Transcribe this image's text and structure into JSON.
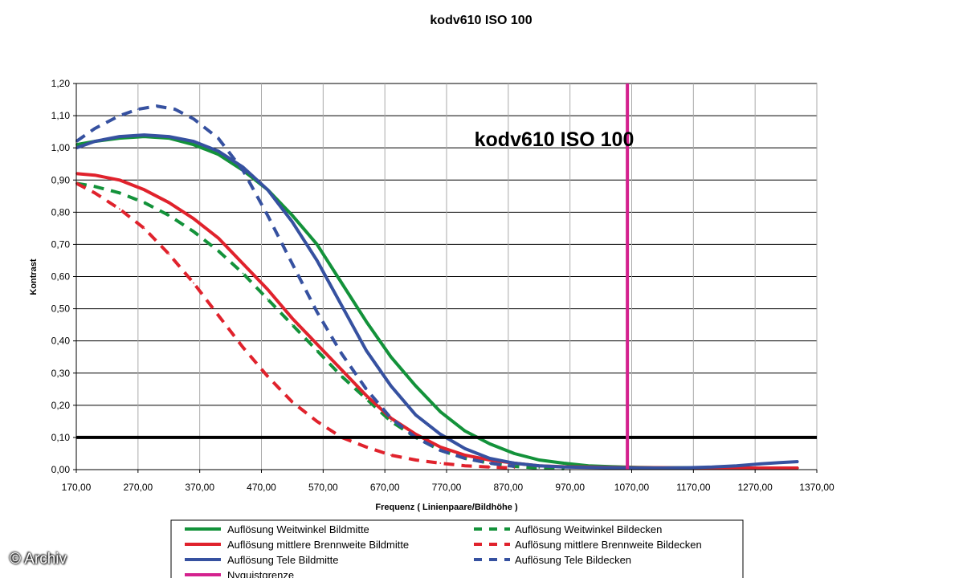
{
  "chart_data": {
    "type": "line",
    "title": "kodv610   ISO 100",
    "inner_title": "kodv610   ISO 100",
    "xlabel": "Frequenz ( Linienpaare/Bildhöhe )",
    "ylabel": "Kontrast",
    "xlim": [
      170,
      1370
    ],
    "ylim": [
      0,
      1.2
    ],
    "x_ticks": [
      170,
      270,
      370,
      470,
      570,
      670,
      770,
      870,
      970,
      1070,
      1170,
      1270,
      1370
    ],
    "x_tick_labels": [
      "170,00",
      "270,00",
      "370,00",
      "470,00",
      "570,00",
      "670,00",
      "770,00",
      "870,00",
      "970,00",
      "1070,00",
      "1170,00",
      "1270,00",
      "1370,00"
    ],
    "y_ticks": [
      0,
      0.1,
      0.2,
      0.3,
      0.4,
      0.5,
      0.6,
      0.7,
      0.8,
      0.9,
      1.0,
      1.1,
      1.2
    ],
    "y_tick_labels": [
      "0,00",
      "0,10",
      "0,20",
      "0,30",
      "0,40",
      "0,50",
      "0,60",
      "0,70",
      "0,80",
      "0,90",
      "1,00",
      "1,10",
      "1,20"
    ],
    "threshold": {
      "y": 0.1,
      "color": "#000000"
    },
    "nyquist": {
      "name": "Nyquistgrenze",
      "x": 1063,
      "color": "#d4218e"
    },
    "legend_position": "bottom",
    "series": [
      {
        "name": "Auflösung Weitwinkel Bildmitte",
        "color": "#13923a",
        "dash": false,
        "x": [
          170,
          200,
          240,
          280,
          320,
          360,
          400,
          440,
          480,
          520,
          560,
          600,
          640,
          680,
          720,
          760,
          800,
          840,
          880,
          920,
          960,
          1000,
          1040,
          1080,
          1120,
          1160,
          1200,
          1240,
          1280,
          1340
        ],
        "y": [
          1.01,
          1.02,
          1.03,
          1.035,
          1.03,
          1.01,
          0.98,
          0.93,
          0.87,
          0.79,
          0.7,
          0.58,
          0.46,
          0.35,
          0.26,
          0.18,
          0.12,
          0.08,
          0.05,
          0.03,
          0.02,
          0.012,
          0.009,
          0.007,
          0.006,
          0.006,
          0.005,
          0.005,
          0.005,
          0.005
        ]
      },
      {
        "name": "Auflösung Weitwinkel Bildecken",
        "color": "#13923a",
        "dash": true,
        "x": [
          170,
          200,
          240,
          280,
          320,
          360,
          400,
          440,
          480,
          520,
          560,
          600,
          640,
          680,
          720,
          760,
          800,
          840,
          880,
          920,
          960
        ],
        "y": [
          0.89,
          0.88,
          0.86,
          0.83,
          0.79,
          0.74,
          0.68,
          0.61,
          0.53,
          0.45,
          0.37,
          0.29,
          0.22,
          0.15,
          0.1,
          0.06,
          0.035,
          0.02,
          0.01,
          0.005,
          0.003
        ]
      },
      {
        "name": "Auflösung mittlere Brennweite Bildmitte",
        "color": "#e0222c",
        "dash": false,
        "x": [
          170,
          200,
          240,
          280,
          320,
          360,
          400,
          440,
          480,
          520,
          560,
          600,
          640,
          680,
          720,
          760,
          800,
          840,
          880,
          920,
          960,
          1000,
          1040,
          1080,
          1120,
          1160,
          1200,
          1240,
          1280,
          1340
        ],
        "y": [
          0.92,
          0.915,
          0.9,
          0.87,
          0.83,
          0.78,
          0.72,
          0.64,
          0.56,
          0.47,
          0.39,
          0.31,
          0.23,
          0.16,
          0.11,
          0.07,
          0.045,
          0.03,
          0.02,
          0.012,
          0.009,
          0.008,
          0.007,
          0.006,
          0.006,
          0.005,
          0.005,
          0.005,
          0.005,
          0.005
        ]
      },
      {
        "name": "Auflösung mittlere Brennweite Bildecken",
        "color": "#e0222c",
        "dash": true,
        "x": [
          170,
          200,
          240,
          280,
          320,
          360,
          400,
          440,
          480,
          520,
          560,
          600,
          640,
          680,
          720,
          760,
          800,
          840,
          880
        ],
        "y": [
          0.89,
          0.86,
          0.81,
          0.75,
          0.67,
          0.58,
          0.48,
          0.38,
          0.29,
          0.21,
          0.15,
          0.1,
          0.07,
          0.045,
          0.03,
          0.02,
          0.012,
          0.008,
          0.005
        ]
      },
      {
        "name": "Auflösung Tele Bildmitte",
        "color": "#3651a0",
        "dash": false,
        "x": [
          170,
          200,
          240,
          280,
          320,
          360,
          400,
          440,
          480,
          520,
          560,
          600,
          640,
          680,
          720,
          760,
          800,
          840,
          880,
          920,
          960,
          1000,
          1040,
          1080,
          1120,
          1160,
          1200,
          1240,
          1280,
          1310,
          1340
        ],
        "y": [
          1.0,
          1.02,
          1.035,
          1.04,
          1.035,
          1.02,
          0.99,
          0.94,
          0.87,
          0.77,
          0.65,
          0.51,
          0.37,
          0.26,
          0.17,
          0.11,
          0.065,
          0.035,
          0.02,
          0.012,
          0.008,
          0.007,
          0.006,
          0.005,
          0.005,
          0.006,
          0.008,
          0.012,
          0.018,
          0.022,
          0.025
        ]
      },
      {
        "name": "Auflösung Tele Bildecken",
        "color": "#3651a0",
        "dash": true,
        "x": [
          170,
          200,
          240,
          270,
          300,
          330,
          360,
          400,
          440,
          480,
          520,
          560,
          600,
          640,
          680,
          720,
          760,
          800,
          840,
          880
        ],
        "y": [
          1.02,
          1.06,
          1.1,
          1.12,
          1.13,
          1.12,
          1.09,
          1.03,
          0.93,
          0.79,
          0.64,
          0.49,
          0.36,
          0.25,
          0.16,
          0.1,
          0.06,
          0.035,
          0.02,
          0.01
        ]
      }
    ]
  },
  "watermark": "© Archiv"
}
